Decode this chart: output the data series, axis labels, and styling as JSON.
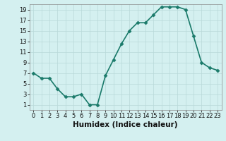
{
  "x": [
    0,
    1,
    2,
    3,
    4,
    5,
    6,
    7,
    8,
    9,
    10,
    11,
    12,
    13,
    14,
    15,
    16,
    17,
    18,
    19,
    20,
    21,
    22,
    23
  ],
  "y": [
    7,
    6,
    6,
    4,
    2.5,
    2.5,
    3,
    1,
    1,
    6.5,
    9.5,
    12.5,
    15,
    16.5,
    16.5,
    18,
    19.5,
    19.5,
    19.5,
    19,
    14,
    9,
    8,
    7.5
  ],
  "line_color": "#1a7a6a",
  "marker": "D",
  "marker_size": 2.5,
  "background_color": "#d4f0f0",
  "grid_color": "#b8d8d8",
  "xlabel": "Humidex (Indice chaleur)",
  "xlim": [
    -0.5,
    23.5
  ],
  "ylim": [
    0,
    20
  ],
  "xticks": [
    0,
    1,
    2,
    3,
    4,
    5,
    6,
    7,
    8,
    9,
    10,
    11,
    12,
    13,
    14,
    15,
    16,
    17,
    18,
    19,
    20,
    21,
    22,
    23
  ],
  "yticks": [
    1,
    3,
    5,
    7,
    9,
    11,
    13,
    15,
    17,
    19
  ],
  "tick_fontsize": 6,
  "xlabel_fontsize": 7.5,
  "linewidth": 1.2
}
